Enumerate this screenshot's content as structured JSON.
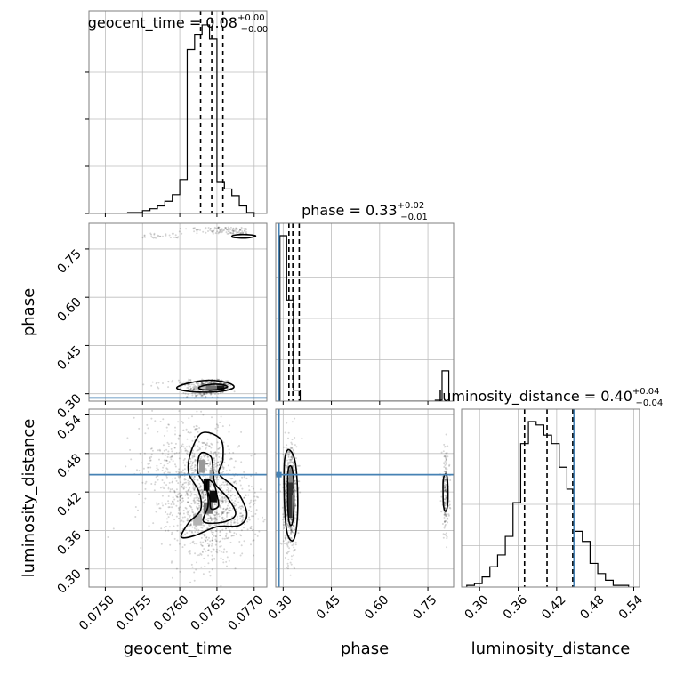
{
  "chart_data": {
    "type": "corner",
    "parameters": [
      "geocent_time",
      "phase",
      "luminosity_distance"
    ],
    "truths": {
      "geocent_time": null,
      "phase": 0.287,
      "luminosity_distance": 0.447
    },
    "truth_color": "#4682b4",
    "ranges": {
      "geocent_time": [
        0.07478,
        0.07717
      ],
      "phase": [
        0.277,
        0.83
      ],
      "luminosity_distance": [
        0.272,
        0.549
      ]
    },
    "ticks": {
      "geocent_time": [
        0.075,
        0.0755,
        0.076,
        0.0765,
        0.077
      ],
      "phase": [
        0.3,
        0.45,
        0.6,
        0.75
      ],
      "luminosity_distance": [
        0.3,
        0.36,
        0.42,
        0.48,
        0.54
      ]
    },
    "tick_labels": {
      "geocent_time": [
        "0.0750",
        "0.0755",
        "0.0760",
        "0.0765",
        "0.0770"
      ],
      "phase": [
        "0.30",
        "0.45",
        "0.60",
        "0.75"
      ],
      "luminosity_distance": [
        "0.30",
        "0.36",
        "0.42",
        "0.48",
        "0.54"
      ]
    },
    "axis_labels": {
      "geocent_time": "geocent_time",
      "phase": "phase",
      "luminosity_distance": "luminosity_distance"
    },
    "titles": [
      {
        "param": "geocent_time",
        "prefix": "geocent_time = 0.08",
        "plus": "+0.00",
        "minus": "−0.00"
      },
      {
        "param": "phase",
        "prefix": "phase = 0.33",
        "plus": "+0.02",
        "minus": "−0.01"
      },
      {
        "param": "luminosity_distance",
        "prefix": "luminosity_distance = 0.40",
        "plus": "+0.04",
        "minus": "−0.04"
      }
    ],
    "quantiles": {
      "geocent_time": [
        0.07628,
        0.07643,
        0.07658
      ],
      "phase": [
        0.318,
        0.33,
        0.35
      ],
      "luminosity_distance": [
        0.37,
        0.405,
        0.445
      ]
    },
    "histograms": {
      "geocent_time": {
        "edges": [
          0.0753,
          0.0754,
          0.0755,
          0.0756,
          0.0757,
          0.0758,
          0.0759,
          0.076,
          0.0761,
          0.0762,
          0.0763,
          0.0764,
          0.0765,
          0.0766,
          0.0767,
          0.0768,
          0.0769,
          0.077
        ],
        "counts": [
          1,
          1,
          3,
          5,
          8,
          13,
          20,
          36,
          174,
          190,
          200,
          185,
          33,
          26,
          19,
          8,
          1
        ]
      },
      "phase": {
        "edges": [
          0.29,
          0.311,
          0.332,
          0.353,
          0.374,
          0.395,
          0.416,
          0.437,
          0.458,
          0.479,
          0.5,
          0.521,
          0.542,
          0.563,
          0.584,
          0.605,
          0.626,
          0.647,
          0.668,
          0.689,
          0.71,
          0.731,
          0.752,
          0.773,
          0.794,
          0.815
        ],
        "counts": [
          180,
          110,
          12,
          0,
          0,
          0,
          0,
          0,
          0,
          0,
          0,
          0,
          0,
          0,
          0,
          0,
          0,
          0,
          0,
          0,
          0,
          0,
          0,
          1,
          33
        ]
      },
      "luminosity_distance": {
        "edges": [
          0.28,
          0.292,
          0.304,
          0.316,
          0.328,
          0.34,
          0.352,
          0.364,
          0.376,
          0.388,
          0.4,
          0.412,
          0.424,
          0.436,
          0.448,
          0.46,
          0.472,
          0.484,
          0.496,
          0.508,
          0.52,
          0.532
        ],
        "counts": [
          1,
          2,
          6,
          12,
          19,
          30,
          50,
          85,
          98,
          96,
          90,
          85,
          71,
          58,
          33,
          27,
          14,
          8,
          4,
          1,
          1
        ]
      }
    },
    "samples": {
      "geocent_time__phase": [
        {
          "mode": "band",
          "x0": 0.07588,
          "x1": 0.0769,
          "y0": 0.797,
          "y1": 0.818,
          "n": 120,
          "taper": true
        },
        {
          "mode": "band",
          "x0": 0.07518,
          "x1": 0.076,
          "y0": 0.783,
          "y1": 0.8,
          "n": 30,
          "taper": true
        },
        {
          "mode": "band",
          "x0": 0.0755,
          "x1": 0.07665,
          "y0": 0.315,
          "y1": 0.345,
          "n": 160,
          "taper": true
        },
        {
          "mode": "band",
          "x0": 0.07588,
          "x1": 0.07645,
          "y0": 0.285,
          "y1": 0.305,
          "n": 40,
          "taper": true
        },
        {
          "mode": "blob",
          "cx": 0.0764,
          "cy": 0.318,
          "sx": 0.00012,
          "sy": 0.01,
          "n": 260
        }
      ],
      "geocent_time__luminosity_distance": [
        {
          "mode": "blob",
          "cx": 0.07635,
          "cy": 0.41,
          "sx": 0.00022,
          "sy": 0.052,
          "n": 800
        },
        {
          "mode": "blob",
          "cx": 0.076,
          "cy": 0.455,
          "sx": 0.0003,
          "sy": 0.05,
          "n": 350
        },
        {
          "mode": "blob",
          "cx": 0.0767,
          "cy": 0.395,
          "sx": 0.0002,
          "sy": 0.03,
          "n": 250
        }
      ],
      "phase__luminosity_distance": [
        {
          "mode": "blob",
          "cx": 0.322,
          "cy": 0.412,
          "sx": 0.01,
          "sy": 0.042,
          "n": 700
        },
        {
          "mode": "blob",
          "cx": 0.805,
          "cy": 0.42,
          "sx": 0.006,
          "sy": 0.035,
          "n": 200
        }
      ]
    },
    "contours": {
      "geocent_time__phase": [
        [
          [
            0.07596,
            0.318
          ],
          [
            0.07612,
            0.333
          ],
          [
            0.0764,
            0.342
          ],
          [
            0.07666,
            0.333
          ],
          [
            0.07672,
            0.318
          ],
          [
            0.0765,
            0.306
          ],
          [
            0.07614,
            0.307
          ]
        ],
        [
          [
            0.07626,
            0.32
          ],
          [
            0.07638,
            0.328
          ],
          [
            0.07655,
            0.329
          ],
          [
            0.07664,
            0.321
          ],
          [
            0.07648,
            0.312
          ],
          [
            0.0763,
            0.313
          ]
        ],
        [
          [
            0.07672,
            0.792
          ],
          [
            0.07686,
            0.795
          ],
          [
            0.07702,
            0.791
          ],
          [
            0.0769,
            0.784
          ],
          [
            0.07672,
            0.786
          ]
        ]
      ],
      "geocent_time__luminosity_distance": [
        [
          [
            0.0763,
            0.512
          ],
          [
            0.07655,
            0.502
          ],
          [
            0.07658,
            0.47
          ],
          [
            0.07653,
            0.448
          ],
          [
            0.07675,
            0.425
          ],
          [
            0.0769,
            0.388
          ],
          [
            0.0768,
            0.368
          ],
          [
            0.0765,
            0.366
          ],
          [
            0.0762,
            0.352
          ],
          [
            0.07602,
            0.35
          ],
          [
            0.07612,
            0.372
          ],
          [
            0.07628,
            0.392
          ],
          [
            0.07626,
            0.42
          ],
          [
            0.07612,
            0.45
          ],
          [
            0.07615,
            0.482
          ]
        ],
        [
          [
            0.07628,
            0.48
          ],
          [
            0.07642,
            0.475
          ],
          [
            0.07645,
            0.452
          ],
          [
            0.07648,
            0.432
          ],
          [
            0.07665,
            0.41
          ],
          [
            0.07675,
            0.385
          ],
          [
            0.07658,
            0.373
          ],
          [
            0.07632,
            0.374
          ],
          [
            0.07638,
            0.398
          ],
          [
            0.07636,
            0.425
          ],
          [
            0.07624,
            0.452
          ]
        ],
        [
          [
            0.07638,
            0.439
          ],
          [
            0.07646,
            0.432
          ],
          [
            0.0765,
            0.415
          ],
          [
            0.07652,
            0.398
          ],
          [
            0.07642,
            0.394
          ],
          [
            0.0764,
            0.412
          ],
          [
            0.07636,
            0.428
          ]
        ]
      ],
      "phase__luminosity_distance": [
        [
          [
            0.305,
            0.472
          ],
          [
            0.318,
            0.486
          ],
          [
            0.337,
            0.468
          ],
          [
            0.345,
            0.42
          ],
          [
            0.343,
            0.372
          ],
          [
            0.332,
            0.345
          ],
          [
            0.315,
            0.352
          ],
          [
            0.306,
            0.382
          ],
          [
            0.303,
            0.432
          ]
        ],
        [
          [
            0.316,
            0.455
          ],
          [
            0.327,
            0.458
          ],
          [
            0.333,
            0.43
          ],
          [
            0.332,
            0.385
          ],
          [
            0.325,
            0.368
          ],
          [
            0.317,
            0.378
          ],
          [
            0.314,
            0.415
          ]
        ],
        [
          [
            0.798,
            0.44
          ],
          [
            0.805,
            0.448
          ],
          [
            0.811,
            0.438
          ],
          [
            0.812,
            0.405
          ],
          [
            0.806,
            0.39
          ],
          [
            0.799,
            0.397
          ],
          [
            0.797,
            0.42
          ]
        ]
      ]
    },
    "density_cells": {
      "geocent_time__phase": [
        {
          "x": 0.07635,
          "y": 0.313,
          "w": 0.0002,
          "h": 0.012,
          "level": 0.55
        },
        {
          "x": 0.0765,
          "y": 0.313,
          "w": 0.0001,
          "h": 0.012,
          "level": 0.9
        },
        {
          "x": 0.0762,
          "y": 0.313,
          "w": 0.00015,
          "h": 0.01,
          "level": 0.25
        }
      ],
      "geocent_time__luminosity_distance": [
        {
          "x": 0.07632,
          "y": 0.422,
          "w": 8e-05,
          "h": 0.018,
          "level": 0.95
        },
        {
          "x": 0.0764,
          "y": 0.404,
          "w": 0.0001,
          "h": 0.018,
          "level": 0.95
        },
        {
          "x": 0.07632,
          "y": 0.386,
          "w": 0.00012,
          "h": 0.018,
          "level": 0.55
        },
        {
          "x": 0.07618,
          "y": 0.368,
          "w": 0.00012,
          "h": 0.018,
          "level": 0.3
        },
        {
          "x": 0.07626,
          "y": 0.45,
          "w": 8e-05,
          "h": 0.02,
          "level": 0.4
        },
        {
          "x": 0.0764,
          "y": 0.44,
          "w": 6e-05,
          "h": 0.015,
          "level": 0.35
        }
      ],
      "phase__luminosity_distance": [
        {
          "x": 0.316,
          "y": 0.38,
          "w": 0.014,
          "h": 0.055,
          "level": 0.8
        },
        {
          "x": 0.318,
          "y": 0.435,
          "w": 0.012,
          "h": 0.02,
          "level": 0.5
        },
        {
          "x": 0.328,
          "y": 0.375,
          "w": 0.008,
          "h": 0.04,
          "level": 0.4
        }
      ]
    },
    "grid": true
  }
}
